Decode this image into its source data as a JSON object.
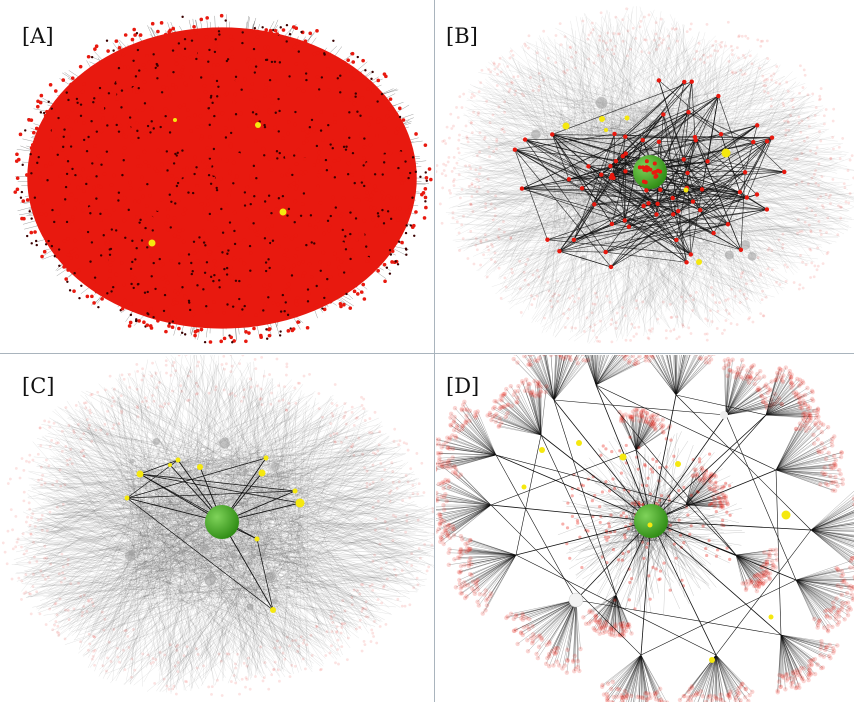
{
  "panels": [
    {
      "label": "[A]",
      "style": "dense-red-hairball"
    },
    {
      "label": "[B]",
      "style": "faded-with-highlighted-core"
    },
    {
      "label": "[C]",
      "style": "faded-with-hub-star"
    },
    {
      "label": "[D]",
      "style": "fan-clusters"
    }
  ],
  "colors": {
    "node_red": "#e8190f",
    "edge_black": "#111111",
    "highlight_yellow": "#f5e80f",
    "hub_green": "#2e8b14",
    "divider": "#a9b4bd"
  }
}
